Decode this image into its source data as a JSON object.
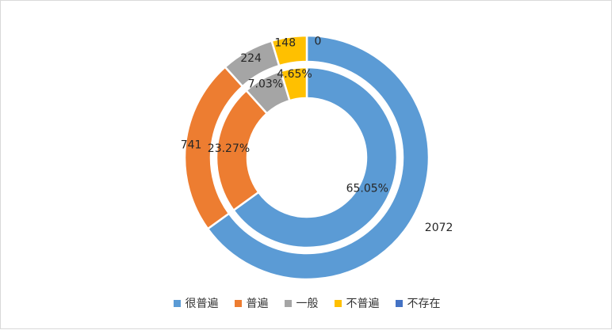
{
  "chart_data": {
    "type": "pie",
    "categories": [
      "很普遍",
      "普遍",
      "一般",
      "不普遍",
      "不存在"
    ],
    "colors": [
      "#5b9bd5",
      "#ed7d31",
      "#a5a5a5",
      "#ffc000",
      "#4472c4"
    ],
    "series": [
      {
        "ring": "outer",
        "values": [
          2072,
          741,
          224,
          148,
          0
        ],
        "labels": [
          "2072",
          "741",
          "224",
          "148",
          "0"
        ]
      },
      {
        "ring": "inner",
        "values": [
          65.05,
          23.27,
          7.03,
          4.65,
          0
        ],
        "labels": [
          "65.05%",
          "23.27%",
          "7.03%",
          "4.65%",
          ""
        ]
      }
    ]
  }
}
